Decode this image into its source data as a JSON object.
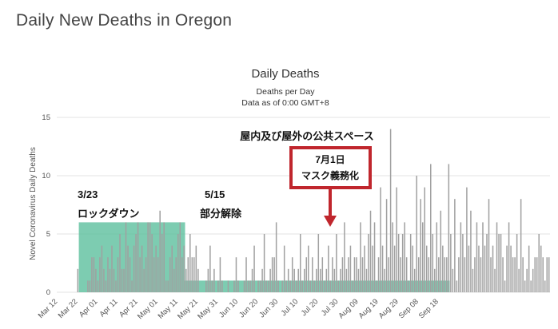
{
  "page": {
    "title": "Daily New Deaths in Oregon"
  },
  "chart_data": {
    "type": "bar",
    "title": "Daily Deaths",
    "subtitle": "Deaths per Day",
    "subtitle2": "Data as of 0:00 GMT+8",
    "ylabel": "Novel Coronavirus Daily Deaths",
    "xlabel": "",
    "ylim": [
      0,
      15
    ],
    "yticks": [
      0,
      5,
      10,
      15
    ],
    "grid": true,
    "legend": "none",
    "bar_color": "#a0a0a0",
    "start_date": "2020-03-12",
    "xtick_labels": [
      "Mar 12",
      "Mar 22",
      "Apr 01",
      "Apr 11",
      "Apr 21",
      "May 01",
      "May 11",
      "May 21",
      "May 31",
      "Jun 10",
      "Jun 20",
      "Jun 30",
      "Jul 10",
      "Jul 20",
      "Jul 30",
      "Aug 09",
      "Aug 19",
      "Aug 29",
      "Sep 08",
      "Sep 18"
    ],
    "values": [
      0,
      0,
      0,
      0,
      0,
      0,
      0,
      0,
      0,
      0,
      2,
      0,
      0,
      0,
      0,
      1,
      1,
      3,
      3,
      2,
      1,
      3,
      4,
      2,
      1,
      3,
      2,
      4,
      2,
      1,
      3,
      5,
      2,
      2,
      6,
      4,
      3,
      1,
      4,
      5,
      6,
      3,
      4,
      2,
      3,
      6,
      6,
      5,
      3,
      4,
      3,
      7,
      5,
      6,
      1,
      1,
      3,
      4,
      2,
      3,
      5,
      6,
      3,
      4,
      2,
      3,
      5,
      3,
      3,
      4,
      2,
      0,
      0,
      0,
      1,
      2,
      4,
      1,
      2,
      0,
      1,
      3,
      1,
      0,
      0,
      1,
      0,
      0,
      1,
      3,
      1,
      0,
      0,
      1,
      3,
      1,
      1,
      2,
      4,
      0,
      1,
      1,
      2,
      5,
      1,
      1,
      2,
      3,
      3,
      6,
      1,
      0,
      1,
      4,
      1,
      2,
      1,
      3,
      2,
      1,
      2,
      5,
      1,
      2,
      3,
      4,
      1,
      3,
      1,
      2,
      5,
      2,
      3,
      1,
      2,
      4,
      1,
      3,
      2,
      5,
      1,
      2,
      3,
      6,
      2,
      3,
      4,
      1,
      3,
      3,
      2,
      6,
      3,
      4,
      2,
      5,
      7,
      4,
      6,
      1,
      3,
      9,
      4,
      2,
      8,
      3,
      14,
      6,
      4,
      9,
      5,
      3,
      5,
      6,
      3,
      1,
      5,
      4,
      2,
      10,
      3,
      8,
      6,
      9,
      4,
      3,
      11,
      5,
      2,
      6,
      3,
      7,
      4,
      3,
      3,
      11,
      5,
      2,
      8,
      1,
      3,
      6,
      5,
      3,
      9,
      4,
      7,
      2,
      3,
      6,
      4,
      3,
      6,
      4,
      5,
      8,
      3,
      4,
      2,
      6,
      5,
      5,
      3,
      1,
      4,
      6,
      4,
      3,
      3,
      5,
      2,
      8,
      3,
      1,
      2,
      4,
      1,
      2,
      3,
      3,
      5,
      4,
      3,
      1,
      3,
      3
    ]
  },
  "shaded_regions": [
    {
      "start": "2020-03-23",
      "end": "2020-05-15",
      "ymax": 6,
      "color": "#5dbf9e"
    },
    {
      "start": "2020-05-15",
      "end": "2020-09-24",
      "ymax": 1,
      "color": "#5dbf9e"
    }
  ],
  "annotations": {
    "lockdown_date": "3/23",
    "lockdown_text": "ロックダウン",
    "partial_date": "5/15",
    "partial_text": "部分解除",
    "mask_header": "屋内及び屋外の公共スペース",
    "mask_date": "7月1日",
    "mask_text": "マスク義務化",
    "callout_border_color": "#c0262d",
    "arrow_color": "#c0262d"
  }
}
